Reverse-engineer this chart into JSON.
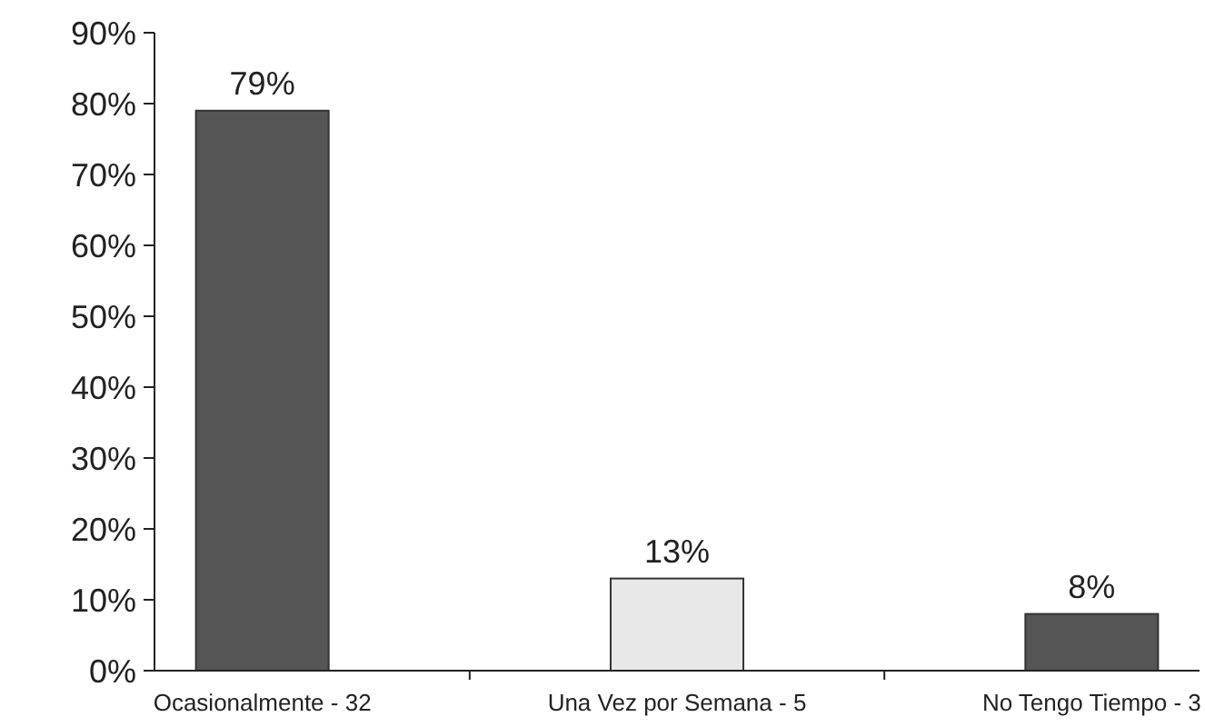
{
  "chart_data": {
    "type": "bar",
    "categories": [
      "Ocasionalmente - 32",
      "Una Vez por Semana - 5",
      "No Tengo Tiempo - 3"
    ],
    "values": [
      79,
      13,
      8
    ],
    "colors": [
      "#555555",
      "#e8e8e8",
      "#555555"
    ],
    "value_labels": [
      "79%",
      "13%",
      "8%"
    ],
    "ylim": [
      0,
      90
    ],
    "yticks": [
      {
        "value": 0,
        "label": "0%"
      },
      {
        "value": 10,
        "label": "10%"
      },
      {
        "value": 20,
        "label": "20%"
      },
      {
        "value": 30,
        "label": "30%"
      },
      {
        "value": 40,
        "label": "40%"
      },
      {
        "value": 50,
        "label": "50%"
      },
      {
        "value": 60,
        "label": "60%"
      },
      {
        "value": 70,
        "label": "70%"
      },
      {
        "value": 80,
        "label": "80%"
      },
      {
        "value": 90,
        "label": "90%"
      }
    ]
  }
}
